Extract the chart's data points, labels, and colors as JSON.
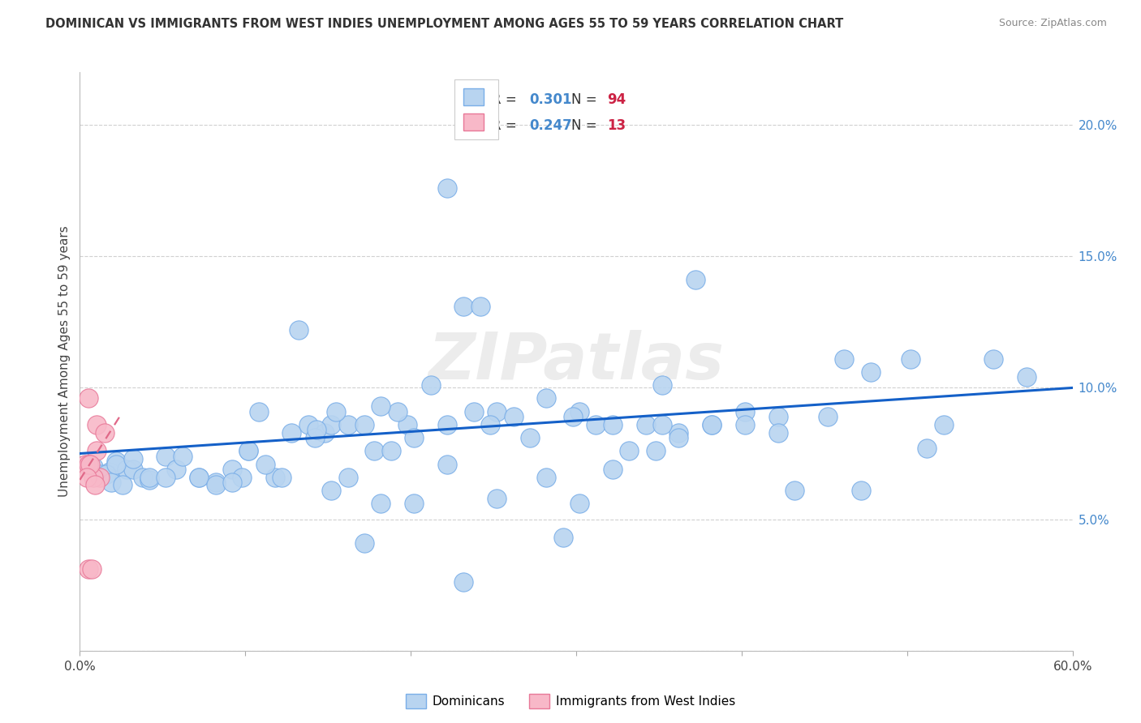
{
  "title": "DOMINICAN VS IMMIGRANTS FROM WEST INDIES UNEMPLOYMENT AMONG AGES 55 TO 59 YEARS CORRELATION CHART",
  "source": "Source: ZipAtlas.com",
  "ylabel": "Unemployment Among Ages 55 to 59 years",
  "xlim": [
    0.0,
    0.6
  ],
  "ylim": [
    0.0,
    0.22
  ],
  "xticks": [
    0.0,
    0.1,
    0.2,
    0.3,
    0.4,
    0.5,
    0.6
  ],
  "xticklabels": [
    "0.0%",
    "",
    "",
    "",
    "",
    "",
    "60.0%"
  ],
  "yticks_right": [
    0.0,
    0.05,
    0.1,
    0.15,
    0.2
  ],
  "yticklabels_right": [
    "",
    "5.0%",
    "10.0%",
    "15.0%",
    "20.0%"
  ],
  "watermark": "ZIPatlas",
  "blue_color": "#b8d4f0",
  "blue_edge": "#7aaee8",
  "pink_color": "#f8b8c8",
  "pink_edge": "#e87898",
  "trend_blue": "#1460c8",
  "trend_pink": "#e06888",
  "blue_x": [
    0.018,
    0.022,
    0.008,
    0.012,
    0.028,
    0.016,
    0.032,
    0.038,
    0.042,
    0.019,
    0.026,
    0.052,
    0.058,
    0.072,
    0.082,
    0.092,
    0.098,
    0.108,
    0.118,
    0.102,
    0.112,
    0.132,
    0.138,
    0.148,
    0.142,
    0.152,
    0.162,
    0.155,
    0.143,
    0.128,
    0.172,
    0.178,
    0.188,
    0.198,
    0.212,
    0.222,
    0.202,
    0.192,
    0.182,
    0.232,
    0.242,
    0.252,
    0.262,
    0.248,
    0.238,
    0.282,
    0.302,
    0.312,
    0.322,
    0.298,
    0.342,
    0.352,
    0.362,
    0.348,
    0.382,
    0.402,
    0.422,
    0.452,
    0.462,
    0.478,
    0.502,
    0.522,
    0.552,
    0.572,
    0.022,
    0.032,
    0.042,
    0.052,
    0.062,
    0.072,
    0.082,
    0.092,
    0.102,
    0.122,
    0.152,
    0.162,
    0.182,
    0.202,
    0.222,
    0.252,
    0.282,
    0.302,
    0.322,
    0.352,
    0.382,
    0.402,
    0.422,
    0.222,
    0.272,
    0.332,
    0.362,
    0.432,
    0.472,
    0.512,
    0.372,
    0.292,
    0.172,
    0.232
  ],
  "blue_y": [
    0.068,
    0.072,
    0.07,
    0.067,
    0.069,
    0.067,
    0.069,
    0.066,
    0.065,
    0.064,
    0.063,
    0.074,
    0.069,
    0.066,
    0.064,
    0.069,
    0.066,
    0.091,
    0.066,
    0.076,
    0.071,
    0.122,
    0.086,
    0.083,
    0.081,
    0.086,
    0.086,
    0.091,
    0.084,
    0.083,
    0.086,
    0.076,
    0.076,
    0.086,
    0.101,
    0.086,
    0.081,
    0.091,
    0.093,
    0.131,
    0.131,
    0.091,
    0.089,
    0.086,
    0.091,
    0.096,
    0.091,
    0.086,
    0.086,
    0.089,
    0.086,
    0.101,
    0.083,
    0.076,
    0.086,
    0.091,
    0.089,
    0.089,
    0.111,
    0.106,
    0.111,
    0.086,
    0.111,
    0.104,
    0.071,
    0.073,
    0.066,
    0.066,
    0.074,
    0.066,
    0.063,
    0.064,
    0.076,
    0.066,
    0.061,
    0.066,
    0.056,
    0.056,
    0.071,
    0.058,
    0.066,
    0.056,
    0.069,
    0.086,
    0.086,
    0.086,
    0.083,
    0.176,
    0.081,
    0.076,
    0.081,
    0.061,
    0.061,
    0.077,
    0.141,
    0.043,
    0.041,
    0.026
  ],
  "pink_x": [
    0.005,
    0.01,
    0.015,
    0.01,
    0.012,
    0.008,
    0.005,
    0.007,
    0.003,
    0.005,
    0.006,
    0.004,
    0.009
  ],
  "pink_y": [
    0.096,
    0.086,
    0.083,
    0.076,
    0.066,
    0.066,
    0.031,
    0.031,
    0.071,
    0.071,
    0.071,
    0.066,
    0.063
  ],
  "blue_trend_x": [
    0.0,
    0.6
  ],
  "blue_trend_y": [
    0.075,
    0.1
  ],
  "pink_trend_x": [
    0.0,
    0.025
  ],
  "pink_trend_y": [
    0.065,
    0.09
  ],
  "background_color": "#ffffff",
  "grid_color": "#d0d0d0"
}
